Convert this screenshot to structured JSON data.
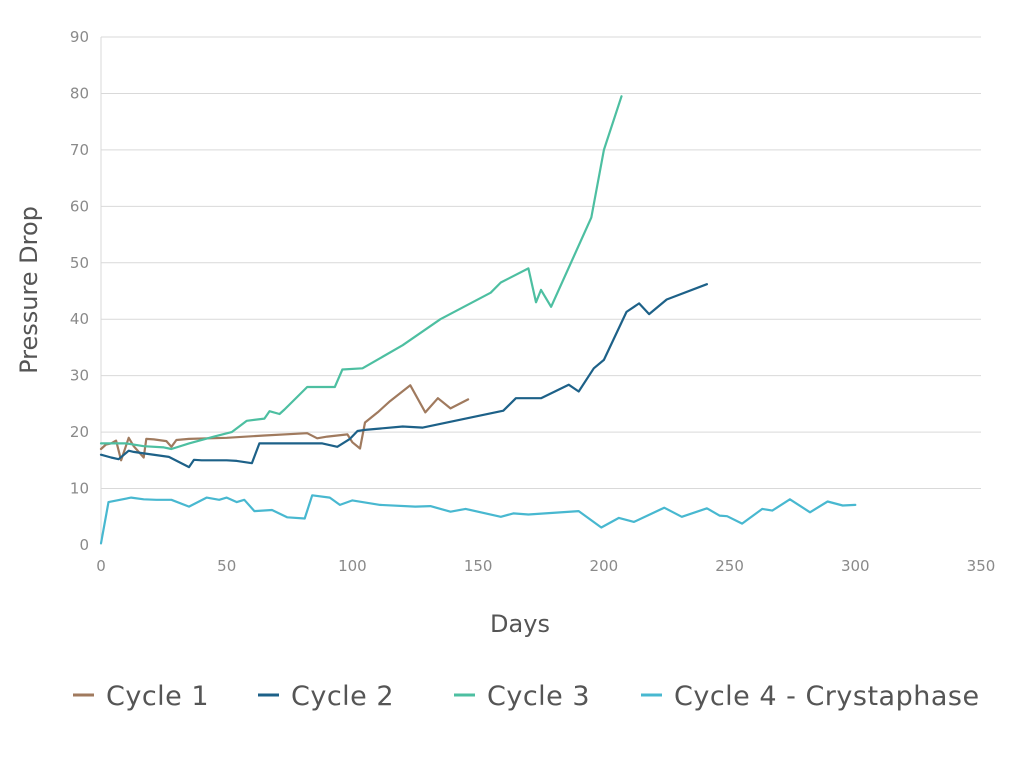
{
  "chart_data": {
    "type": "line",
    "xlabel": "Days",
    "ylabel": "Pressure Drop",
    "xlim": [
      0,
      350
    ],
    "ylim": [
      0,
      90
    ],
    "xticks": [
      0,
      50,
      100,
      150,
      200,
      250,
      300,
      350
    ],
    "yticks": [
      0,
      10,
      20,
      30,
      40,
      50,
      60,
      70,
      80,
      90
    ],
    "grid": "horizontal",
    "legend_position": "bottom",
    "series": [
      {
        "name": "Cycle 1",
        "color": "#a07a5e",
        "points": [
          [
            0,
            17
          ],
          [
            2,
            17.8
          ],
          [
            4,
            18
          ],
          [
            6,
            18.5
          ],
          [
            8,
            15
          ],
          [
            11,
            19
          ],
          [
            13,
            17.5
          ],
          [
            15,
            16.5
          ],
          [
            17,
            15.5
          ],
          [
            18,
            18.8
          ],
          [
            21,
            18.7
          ],
          [
            26,
            18.4
          ],
          [
            28,
            17.4
          ],
          [
            30,
            18.6
          ],
          [
            35,
            18.8
          ],
          [
            50,
            19
          ],
          [
            65,
            19.4
          ],
          [
            82,
            19.8
          ],
          [
            86,
            18.9
          ],
          [
            90,
            19.2
          ],
          [
            98,
            19.6
          ],
          [
            100,
            18.2
          ],
          [
            103,
            17.1
          ],
          [
            105,
            21.7
          ],
          [
            110,
            23.5
          ],
          [
            115,
            25.5
          ],
          [
            123,
            28.3
          ],
          [
            129,
            23.5
          ],
          [
            134,
            26
          ],
          [
            139,
            24.2
          ],
          [
            146,
            25.8
          ]
        ]
      },
      {
        "name": "Cycle 2",
        "color": "#1d6188",
        "points": [
          [
            0,
            16
          ],
          [
            4,
            15.5
          ],
          [
            7,
            15.2
          ],
          [
            11,
            16.7
          ],
          [
            13,
            16.5
          ],
          [
            16,
            16.3
          ],
          [
            27,
            15.6
          ],
          [
            35,
            13.8
          ],
          [
            37,
            15.1
          ],
          [
            40,
            15
          ],
          [
            50,
            15
          ],
          [
            54,
            14.9
          ],
          [
            60,
            14.5
          ],
          [
            63,
            18
          ],
          [
            80,
            18
          ],
          [
            88,
            18
          ],
          [
            94,
            17.4
          ],
          [
            99,
            18.8
          ],
          [
            102,
            20.2
          ],
          [
            105,
            20.4
          ],
          [
            120,
            21
          ],
          [
            128,
            20.8
          ],
          [
            160,
            23.8
          ],
          [
            165,
            26
          ],
          [
            175,
            26
          ],
          [
            186,
            28.4
          ],
          [
            190,
            27.2
          ],
          [
            196,
            31.3
          ],
          [
            200,
            32.8
          ],
          [
            209,
            41.3
          ],
          [
            214,
            42.8
          ],
          [
            218,
            40.9
          ],
          [
            225,
            43.5
          ],
          [
            241,
            46.2
          ]
        ]
      },
      {
        "name": "Cycle 3",
        "color": "#4dbfa1",
        "points": [
          [
            0,
            18
          ],
          [
            10,
            18
          ],
          [
            17,
            17.5
          ],
          [
            25,
            17.3
          ],
          [
            28,
            17
          ],
          [
            35,
            18
          ],
          [
            45,
            19.2
          ],
          [
            52,
            20
          ],
          [
            58,
            22
          ],
          [
            65,
            22.4
          ],
          [
            67,
            23.7
          ],
          [
            71,
            23.2
          ],
          [
            73,
            24
          ],
          [
            82,
            28
          ],
          [
            93,
            28
          ],
          [
            96,
            31.1
          ],
          [
            104,
            31.3
          ],
          [
            120,
            35.4
          ],
          [
            135,
            40
          ],
          [
            155,
            44.7
          ],
          [
            159,
            46.5
          ],
          [
            170,
            49
          ],
          [
            173,
            43
          ],
          [
            175,
            45.2
          ],
          [
            179,
            42.2
          ],
          [
            195,
            58
          ],
          [
            200,
            70
          ],
          [
            207,
            79.5
          ]
        ]
      },
      {
        "name": "Cycle 4 - Crystaphase",
        "color": "#48b8d0",
        "points": [
          [
            0,
            0.3
          ],
          [
            3,
            7.6
          ],
          [
            12,
            8.4
          ],
          [
            17,
            8.1
          ],
          [
            22,
            8
          ],
          [
            28,
            8
          ],
          [
            35,
            6.8
          ],
          [
            42,
            8.4
          ],
          [
            47,
            8
          ],
          [
            50,
            8.4
          ],
          [
            54,
            7.6
          ],
          [
            57,
            8
          ],
          [
            61,
            6
          ],
          [
            68,
            6.2
          ],
          [
            74,
            4.9
          ],
          [
            81,
            4.7
          ],
          [
            84,
            8.8
          ],
          [
            91,
            8.4
          ],
          [
            95,
            7.1
          ],
          [
            100,
            7.9
          ],
          [
            111,
            7.1
          ],
          [
            125,
            6.8
          ],
          [
            131,
            6.9
          ],
          [
            139,
            5.9
          ],
          [
            145,
            6.4
          ],
          [
            159,
            5
          ],
          [
            164,
            5.6
          ],
          [
            170,
            5.4
          ],
          [
            190,
            6
          ],
          [
            199,
            3.1
          ],
          [
            206,
            4.8
          ],
          [
            212,
            4.1
          ],
          [
            224,
            6.6
          ],
          [
            231,
            5
          ],
          [
            241,
            6.5
          ],
          [
            246,
            5.2
          ],
          [
            249,
            5.1
          ],
          [
            255,
            3.8
          ],
          [
            263,
            6.4
          ],
          [
            267,
            6.1
          ],
          [
            274,
            8.1
          ],
          [
            282,
            5.8
          ],
          [
            289,
            7.7
          ],
          [
            295,
            7
          ],
          [
            300,
            7.1
          ]
        ]
      }
    ]
  }
}
